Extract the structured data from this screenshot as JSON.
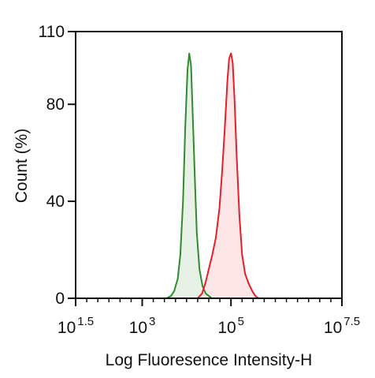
{
  "chart_data": {
    "type": "area",
    "title": "",
    "xlabel": "Log Fluoresence Intensity-H",
    "ylabel": "Count  (%)",
    "xscale": "log10",
    "xlim": [
      1.5,
      7.5
    ],
    "ylim": [
      0,
      110
    ],
    "grid": false,
    "legend": "none",
    "xticks": [
      {
        "base": "10",
        "exp": "1.5",
        "value": 1.5
      },
      {
        "base": "10",
        "exp": "3",
        "value": 3
      },
      {
        "base": "10",
        "exp": "5",
        "value": 5
      },
      {
        "base": "10",
        "exp": "7.5",
        "value": 7.5
      }
    ],
    "yticks": [
      {
        "label": "0",
        "value": 0
      },
      {
        "label": "40",
        "value": 40
      },
      {
        "label": "80",
        "value": 80
      },
      {
        "label": "110",
        "value": 110
      }
    ],
    "series": [
      {
        "color": "#2e8b2e",
        "fill": "#e3efe0",
        "x": [
          3.55,
          3.65,
          3.72,
          3.8,
          3.86,
          3.92,
          3.97,
          4.02,
          4.06,
          4.1,
          4.14,
          4.19,
          4.23,
          4.29,
          4.36,
          4.43,
          4.5,
          4.57
        ],
        "y": [
          0,
          1,
          3,
          8,
          18,
          40,
          70,
          94,
          101,
          96,
          75,
          48,
          27,
          12,
          5,
          2,
          1,
          0
        ]
      },
      {
        "color": "#e0202a",
        "fill": "#fbe1e3",
        "x": [
          4.25,
          4.35,
          4.42,
          4.5,
          4.58,
          4.66,
          4.74,
          4.8,
          4.86,
          4.92,
          4.96,
          5.0,
          5.04,
          5.08,
          5.13,
          5.19,
          5.25,
          5.32,
          5.4,
          5.48,
          5.55,
          5.62
        ],
        "y": [
          0,
          2,
          6,
          12,
          18,
          25,
          37,
          52,
          70,
          90,
          99,
          101,
          97,
          82,
          58,
          34,
          18,
          10,
          6,
          3,
          1,
          0
        ]
      }
    ]
  }
}
